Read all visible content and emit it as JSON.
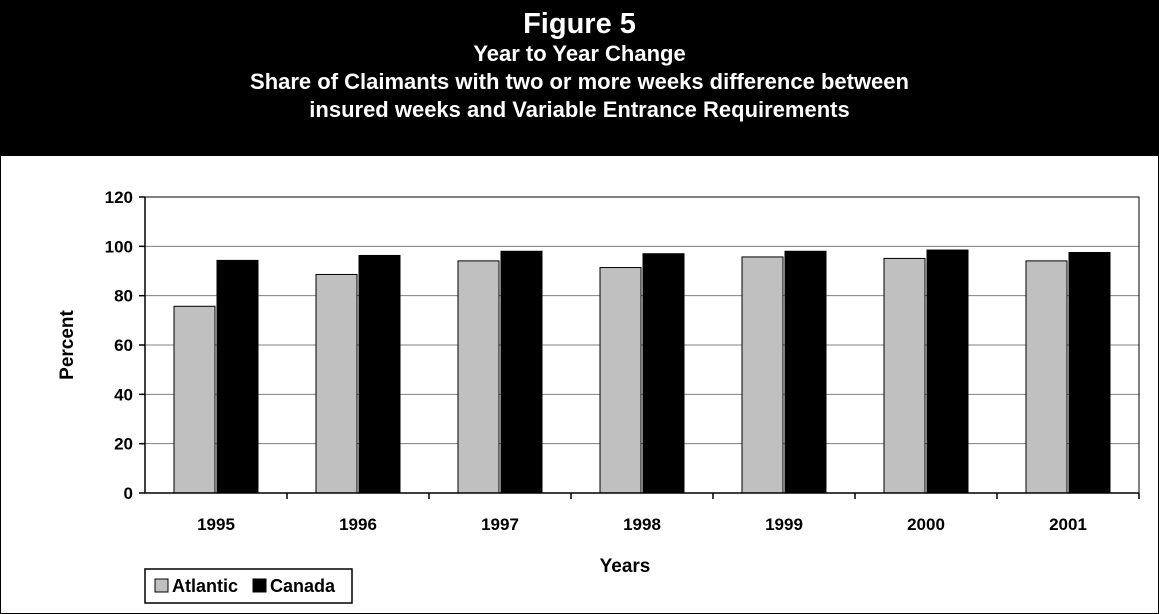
{
  "header": {
    "title": "Figure 5",
    "subtitle_lines": [
      "Year to Year Change",
      "Share of Claimants with two or more weeks difference between",
      "insured weeks and Variable Entrance Requirements"
    ]
  },
  "colors": {
    "header_bg": "#000000",
    "header_text": "#ffffff",
    "atlantic": "#c0c0c0",
    "canada": "#000000",
    "grid": "#808080"
  },
  "chart_data": {
    "type": "bar",
    "title": "Figure 5",
    "subtitle": "Year to Year Change — Share of Claimants with two or more weeks difference between insured weeks and Variable Entrance Requirements",
    "xlabel": "Years",
    "ylabel": "Percent",
    "categories": [
      "1995",
      "1996",
      "1997",
      "1998",
      "1999",
      "2000",
      "2001"
    ],
    "ylim": [
      0,
      120
    ],
    "yticks": [
      0,
      20,
      40,
      60,
      80,
      100,
      120
    ],
    "grid": true,
    "legend_position": "bottom-left",
    "series": [
      {
        "name": "Atlantic",
        "color": "#c0c0c0",
        "values": [
          75.7,
          88.6,
          94.1,
          91.4,
          95.7,
          95.1,
          94.1
        ]
      },
      {
        "name": "Canada",
        "color": "#000000",
        "values": [
          94.3,
          96.3,
          98.0,
          97.0,
          98.0,
          98.5,
          97.5
        ]
      }
    ]
  }
}
